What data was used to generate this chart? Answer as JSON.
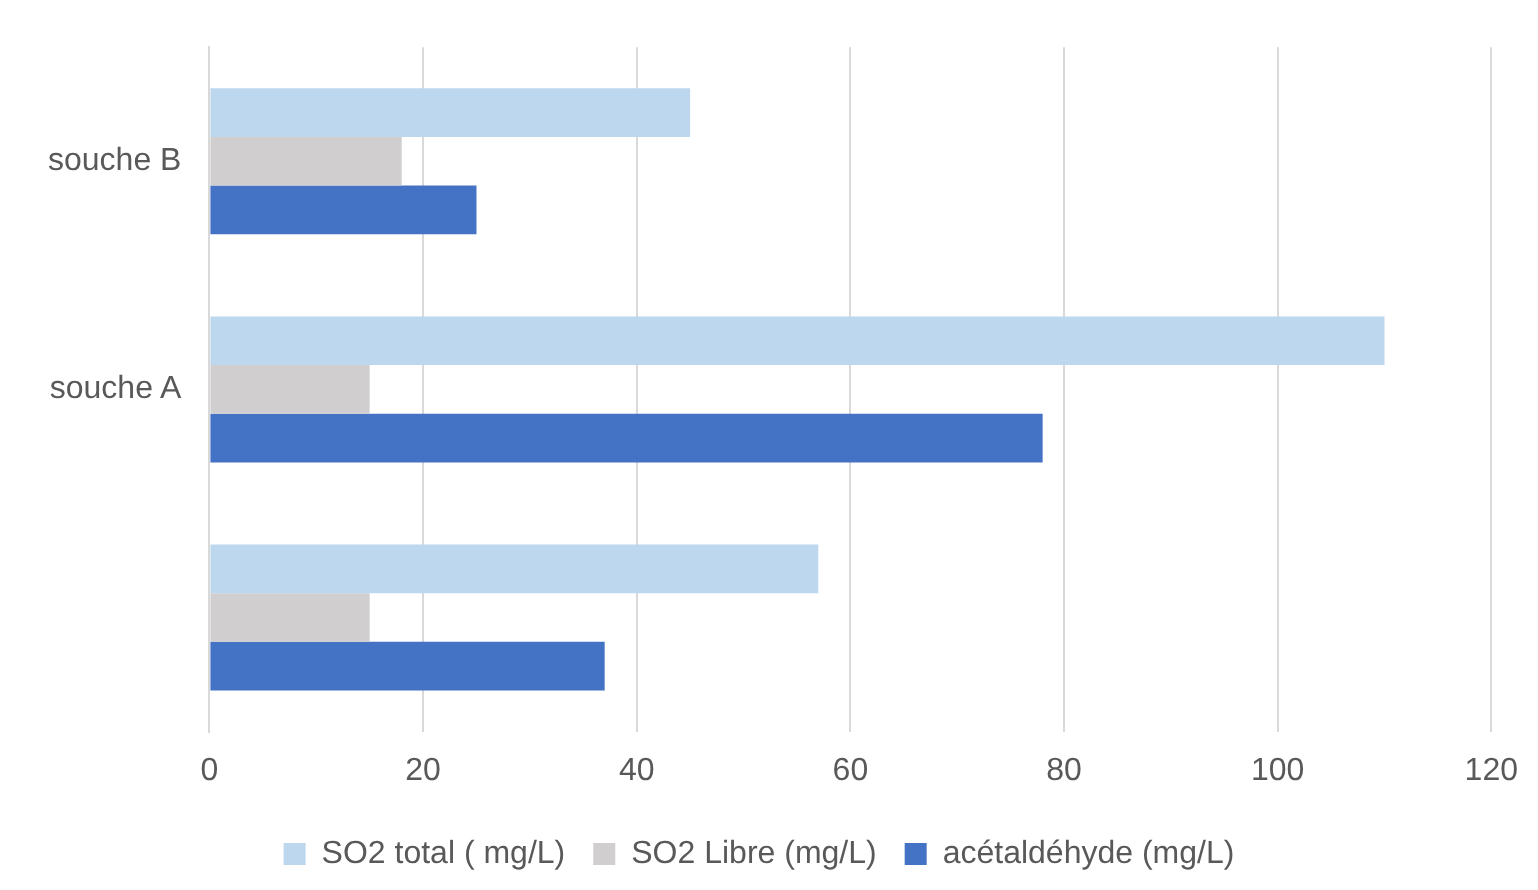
{
  "chart_data": {
    "type": "bar",
    "orientation": "horizontal",
    "categories": [
      "souche B",
      "souche A",
      null
    ],
    "series": [
      {
        "name": "SO2 total ( mg/L)",
        "color": "#bdd7ee",
        "values": [
          45,
          110,
          57
        ]
      },
      {
        "name": "SO2 Libre (mg/L)",
        "color": "#d0cece",
        "values": [
          18,
          15,
          15
        ]
      },
      {
        "name": "acétaldéhyde (mg/L)",
        "color": "#4472c4",
        "values": [
          25,
          78,
          37
        ]
      }
    ],
    "xlim": [
      0,
      120
    ],
    "xticks": [
      0,
      20,
      40,
      60,
      80,
      100,
      120
    ],
    "grid": "x",
    "legend": "bottom"
  }
}
